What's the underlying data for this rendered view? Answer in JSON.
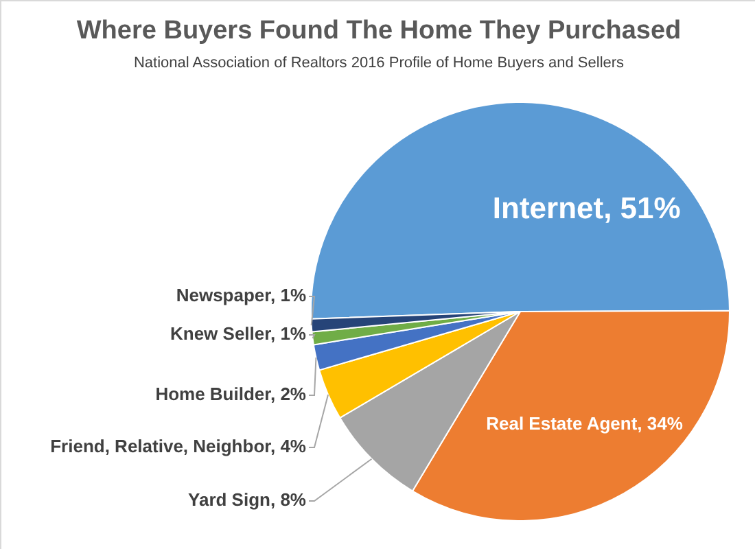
{
  "chart_data": {
    "type": "pie",
    "title": "Where Buyers Found The Home They Purchased",
    "subtitle": "National Association of Realtors 2016 Profile of Home Buyers and Sellers",
    "categories": [
      "Internet",
      "Real Estate Agent",
      "Yard Sign",
      "Friend, Relative, Neighbor",
      "Home Builder",
      "Knew Seller",
      "Newspaper"
    ],
    "values": [
      51,
      34,
      8,
      4,
      2,
      1,
      1
    ],
    "colors": [
      "#5b9bd5",
      "#ed7d31",
      "#a5a5a5",
      "#ffc000",
      "#4472c4",
      "#70ad47",
      "#264478"
    ],
    "value_labels": [
      "51%",
      "34%",
      "8%",
      "4%",
      "2%",
      "1%",
      "1%"
    ],
    "legend": false
  }
}
